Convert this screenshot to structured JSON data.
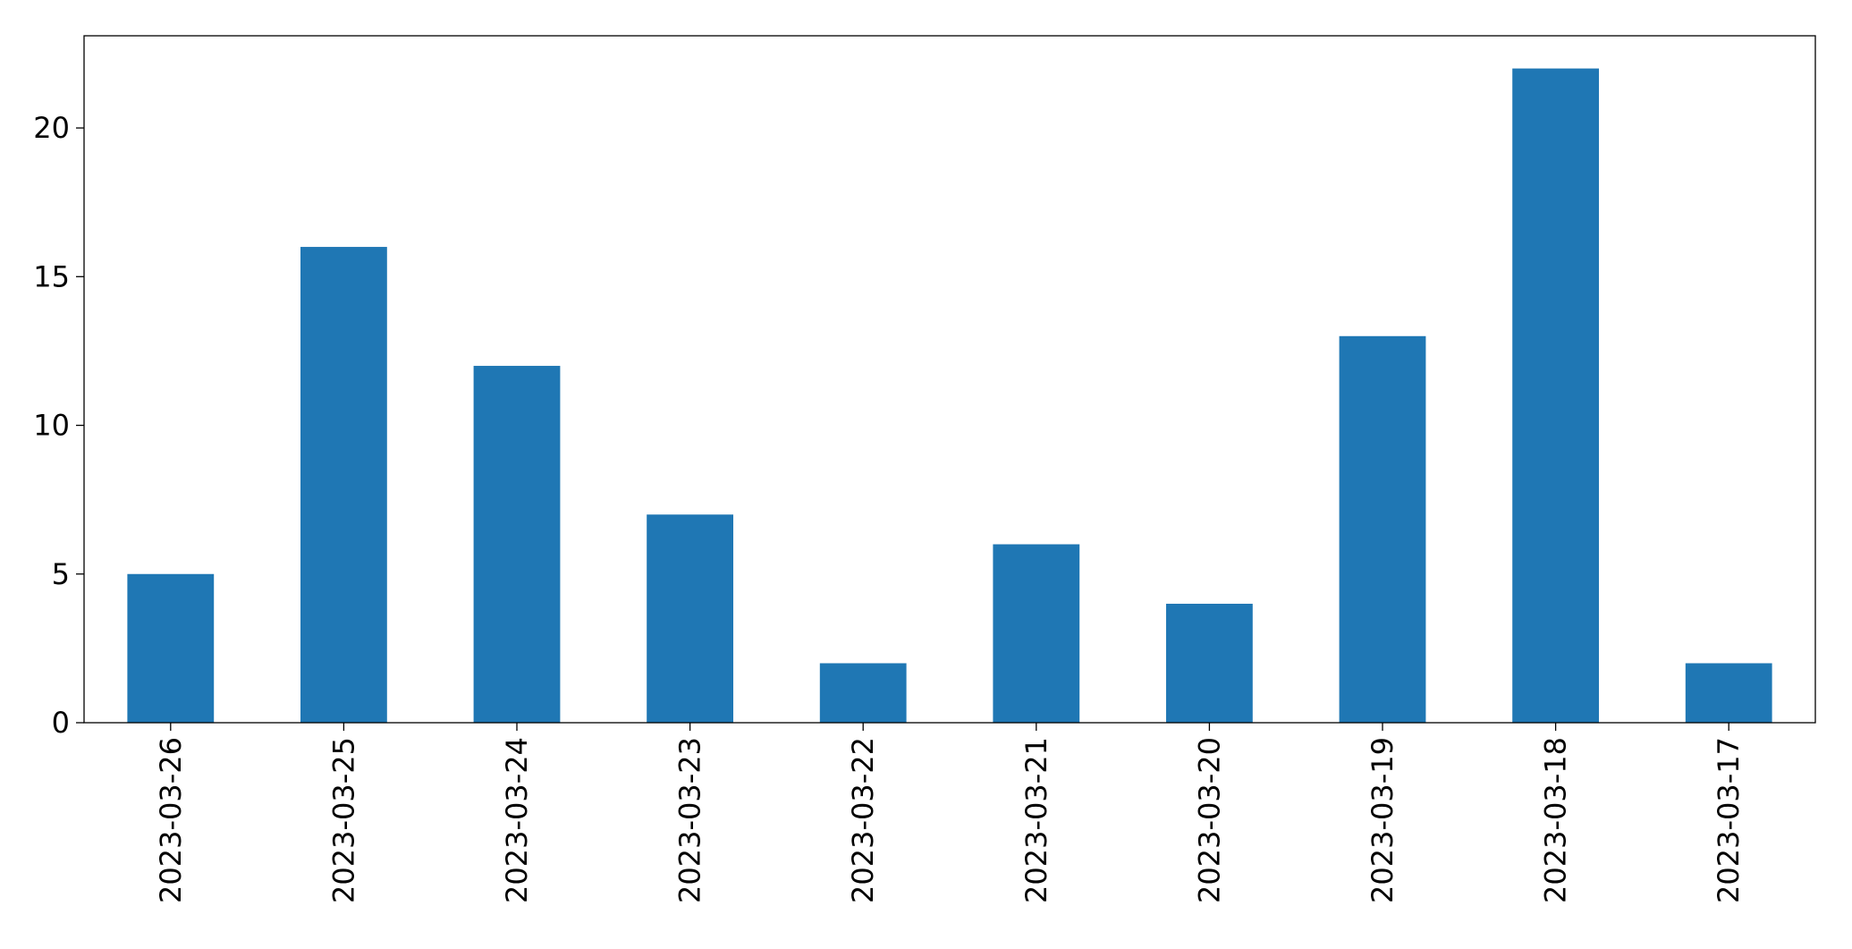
{
  "chart_data": {
    "type": "bar",
    "categories": [
      "2023-03-26",
      "2023-03-25",
      "2023-03-24",
      "2023-03-23",
      "2023-03-22",
      "2023-03-21",
      "2023-03-20",
      "2023-03-19",
      "2023-03-18",
      "2023-03-17"
    ],
    "values": [
      5,
      16,
      12,
      7,
      2,
      6,
      4,
      13,
      22,
      2
    ],
    "color": "#1f77b4",
    "ylim": [
      0,
      23.1
    ],
    "yticks": [
      0,
      5,
      10,
      15,
      20
    ],
    "grid": false
  }
}
